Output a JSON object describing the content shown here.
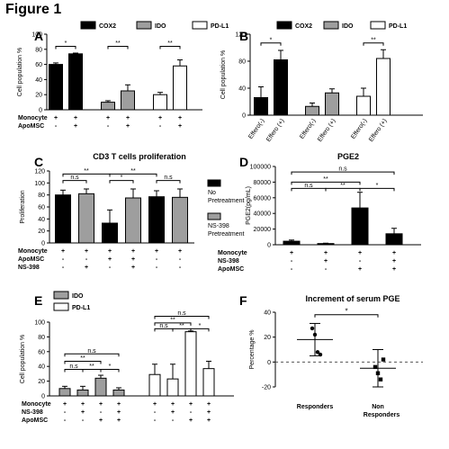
{
  "figure_title": "Figure 1",
  "colors": {
    "black": "#000000",
    "gray": "#9e9e9e",
    "white": "#ffffff"
  },
  "chart_data": [
    {
      "id": "A",
      "panel_label": "A",
      "type": "bar",
      "ylabel": "Cell population %",
      "ylim": [
        0,
        100
      ],
      "yticks": [
        0,
        20,
        40,
        60,
        80,
        100
      ],
      "legend": [
        {
          "name": "COX2",
          "color": "#000000"
        },
        {
          "name": "IDO",
          "color": "#9e9e9e"
        },
        {
          "name": "PD-L1",
          "color": "#ffffff"
        }
      ],
      "bars": [
        {
          "fill": "#000000",
          "value": 60,
          "err": 2,
          "group": 0
        },
        {
          "fill": "#000000",
          "value": 74,
          "err": 1,
          "group": 0
        },
        {
          "fill": "#9e9e9e",
          "value": 10,
          "err": 2,
          "group": 1
        },
        {
          "fill": "#9e9e9e",
          "value": 25,
          "err": 8,
          "group": 1
        },
        {
          "fill": "#ffffff",
          "value": 20,
          "err": 3,
          "group": 2
        },
        {
          "fill": "#ffffff",
          "value": 58,
          "err": 8,
          "group": 2
        }
      ],
      "sig": [
        {
          "from": 0,
          "to": 1,
          "label": "*",
          "y": 84
        },
        {
          "from": 2,
          "to": 3,
          "label": "**",
          "y": 84
        },
        {
          "from": 4,
          "to": 5,
          "label": "**",
          "y": 84
        }
      ],
      "conditions": [
        {
          "name": "Monocyte",
          "marks": [
            "+",
            "+",
            "+",
            "+",
            "+",
            "+"
          ]
        },
        {
          "name": "ApoMSC",
          "marks": [
            "-",
            "+",
            "-",
            "+",
            "-",
            "+"
          ]
        }
      ]
    },
    {
      "id": "B",
      "panel_label": "B",
      "type": "bar",
      "ylabel": "Cell population %",
      "ylim": [
        0,
        120
      ],
      "yticks": [
        0,
        40,
        80,
        120
      ],
      "legend": [
        {
          "name": "COX2",
          "color": "#000000"
        },
        {
          "name": "IDO",
          "color": "#9e9e9e"
        },
        {
          "name": "PD-L1",
          "color": "#ffffff"
        }
      ],
      "bars": [
        {
          "fill": "#000000",
          "value": 26,
          "err": 16,
          "group": 0,
          "label": "Effero(-)"
        },
        {
          "fill": "#000000",
          "value": 82,
          "err": 14,
          "group": 0,
          "label": "Effero (+)"
        },
        {
          "fill": "#9e9e9e",
          "value": 13,
          "err": 5,
          "group": 1,
          "label": "Effero(-)"
        },
        {
          "fill": "#9e9e9e",
          "value": 33,
          "err": 6,
          "group": 1,
          "label": "Effero (+)"
        },
        {
          "fill": "#ffffff",
          "value": 28,
          "err": 12,
          "group": 2,
          "label": "Effero(-)"
        },
        {
          "fill": "#ffffff",
          "value": 84,
          "err": 13,
          "group": 2,
          "label": "Effero (+)"
        }
      ],
      "sig": [
        {
          "from": 0,
          "to": 1,
          "label": "*",
          "y": 107
        },
        {
          "from": 4,
          "to": 5,
          "label": "**",
          "y": 107
        }
      ],
      "conditions": []
    },
    {
      "id": "C",
      "panel_label": "C",
      "type": "bar",
      "title": "CD3 T cells proliferation",
      "ylabel": "Proliferation",
      "ylim": [
        0,
        120
      ],
      "yticks": [
        0,
        20,
        40,
        60,
        80,
        100,
        120
      ],
      "legend": [
        {
          "name": "No Pretreatment",
          "color": "#000000"
        },
        {
          "name": "NS-398 Pretreatment",
          "color": "#9e9e9e"
        }
      ],
      "bars": [
        {
          "fill": "#000000",
          "value": 80,
          "err": 8
        },
        {
          "fill": "#9e9e9e",
          "value": 82,
          "err": 8
        },
        {
          "fill": "#000000",
          "value": 33,
          "err": 22
        },
        {
          "fill": "#9e9e9e",
          "value": 75,
          "err": 15
        },
        {
          "fill": "#000000",
          "value": 77,
          "err": 10
        },
        {
          "fill": "#9e9e9e",
          "value": 76,
          "err": 14
        }
      ],
      "sig": [
        {
          "from": 0,
          "to": 2,
          "label": "**",
          "y": 115
        },
        {
          "from": 2,
          "to": 4,
          "label": "**",
          "y": 115
        },
        {
          "from": 0,
          "to": 1,
          "label": "n.s",
          "y": 104
        },
        {
          "from": 2,
          "to": 3,
          "label": "*",
          "y": 104
        },
        {
          "from": 4,
          "to": 5,
          "label": "n.s",
          "y": 104
        }
      ],
      "conditions": [
        {
          "name": "Monocyte",
          "marks": [
            "+",
            "+",
            "+",
            "+",
            "+",
            "+"
          ]
        },
        {
          "name": "ApoMSC",
          "marks": [
            "-",
            "-",
            "+",
            "+",
            "-",
            "-"
          ]
        },
        {
          "name": "NS-398",
          "marks": [
            "-",
            "+",
            "-",
            "+",
            "-",
            "-"
          ]
        }
      ]
    },
    {
      "id": "D",
      "panel_label": "D",
      "type": "bar",
      "title": "PGE2",
      "ylabel": "PGE2(pg/mL)",
      "ylim": [
        0,
        100000
      ],
      "yticks": [
        0,
        20000,
        40000,
        60000,
        80000,
        100000
      ],
      "legend": [],
      "bars": [
        {
          "fill": "#000000",
          "value": 4500,
          "err": 1500
        },
        {
          "fill": "#000000",
          "value": 1500,
          "err": 500
        },
        {
          "fill": "#000000",
          "value": 47000,
          "err": 20000
        },
        {
          "fill": "#000000",
          "value": 14000,
          "err": 7000
        }
      ],
      "sig": [
        {
          "from": 0,
          "to": 3,
          "label": "n.s",
          "y": 93000
        },
        {
          "from": 0,
          "to": 2,
          "label": "**",
          "y": 80000
        },
        {
          "from": 0,
          "to": 1,
          "label": "n.s",
          "y": 72000
        },
        {
          "from": 1,
          "to": 2,
          "label": "**",
          "y": 72000
        },
        {
          "from": 2,
          "to": 3,
          "label": "*",
          "y": 72000
        }
      ],
      "conditions": [
        {
          "name": "Monocyte",
          "marks": [
            "+",
            "+",
            "+",
            "+"
          ]
        },
        {
          "name": "NS-398",
          "marks": [
            "-",
            "+",
            "-",
            "+"
          ]
        },
        {
          "name": "ApoMSC",
          "marks": [
            "-",
            "-",
            "+",
            "+"
          ]
        }
      ]
    },
    {
      "id": "E",
      "panel_label": "E",
      "type": "bar",
      "ylabel": "Cell population %",
      "ylim": [
        0,
        100
      ],
      "yticks": [
        0,
        20,
        40,
        60,
        80,
        100
      ],
      "legend": [
        {
          "name": "IDO",
          "color": "#9e9e9e"
        },
        {
          "name": "PD-L1",
          "color": "#ffffff"
        }
      ],
      "bars": [
        {
          "fill": "#9e9e9e",
          "value": 10,
          "err": 3
        },
        {
          "fill": "#9e9e9e",
          "value": 8,
          "err": 5
        },
        {
          "fill": "#9e9e9e",
          "value": 24,
          "err": 4
        },
        {
          "fill": "#9e9e9e",
          "value": 8,
          "err": 3
        },
        {
          "fill": "#ffffff",
          "value": 29,
          "err": 14
        },
        {
          "fill": "#ffffff",
          "value": 23,
          "err": 20
        },
        {
          "fill": "#ffffff",
          "value": 87,
          "err": 1
        },
        {
          "fill": "#ffffff",
          "value": 37,
          "err": 10
        }
      ],
      "sig": [
        {
          "from": 0,
          "to": 3,
          "label": "n.s",
          "y": 57
        },
        {
          "from": 0,
          "to": 2,
          "label": "**",
          "y": 47
        },
        {
          "from": 0,
          "to": 1,
          "label": "n.s",
          "y": 36
        },
        {
          "from": 1,
          "to": 2,
          "label": "**",
          "y": 36
        },
        {
          "from": 2,
          "to": 3,
          "label": "*",
          "y": 36
        },
        {
          "from": 4,
          "to": 7,
          "label": "n.s",
          "y": 108
        },
        {
          "from": 4,
          "to": 6,
          "label": "**",
          "y": 99
        },
        {
          "from": 4,
          "to": 5,
          "label": "n.s",
          "y": 91
        },
        {
          "from": 5,
          "to": 6,
          "label": "**",
          "y": 91
        },
        {
          "from": 6,
          "to": 7,
          "label": "*",
          "y": 91
        }
      ],
      "conditions": [
        {
          "name": "Monocyte",
          "marks": [
            "+",
            "+",
            "+",
            "+",
            "+",
            "+",
            "+",
            "+"
          ]
        },
        {
          "name": "NS-398",
          "marks": [
            "-",
            "+",
            "-",
            "+",
            "-",
            "+",
            "-",
            "+"
          ]
        },
        {
          "name": "ApoMSC",
          "marks": [
            "-",
            "-",
            "+",
            "+",
            "-",
            "-",
            "+",
            "+"
          ]
        }
      ]
    },
    {
      "id": "F",
      "panel_label": "F",
      "type": "scatter",
      "title": "Increment of serum PGE",
      "ylabel": "Percentage %",
      "ylim": [
        -20,
        40
      ],
      "yticks": [
        -20,
        0,
        20,
        40
      ],
      "categories": [
        "Responders",
        "Non Responders"
      ],
      "groups": [
        {
          "category": "Responders",
          "marker": "circle",
          "mean": 18,
          "sd_low": 5,
          "sd_high": 31,
          "points": [
            27,
            22,
            8,
            6
          ]
        },
        {
          "category": "Non Responders",
          "marker": "square",
          "mean": -5,
          "sd_low": -20,
          "sd_high": 10,
          "points": [
            -4,
            -9,
            -14,
            2
          ]
        }
      ],
      "sig": [
        {
          "from": 0,
          "to": 1,
          "label": "*",
          "y": 38
        }
      ]
    }
  ]
}
